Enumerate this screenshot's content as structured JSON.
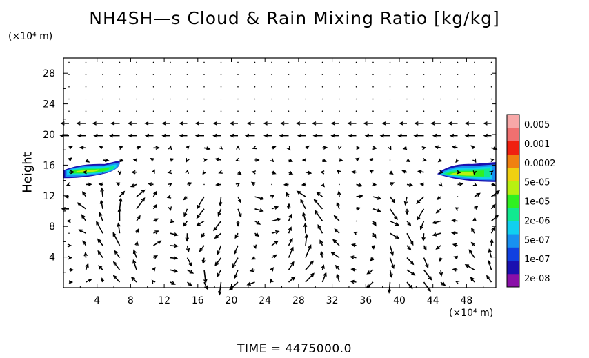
{
  "chart_data": {
    "type": "heatmap",
    "title": "NH4SH—s Cloud & Rain Mixing Ratio [kg/kg]",
    "x_unit": "(×10⁴ m)",
    "y_unit": "(×10⁴ m)",
    "ylabel": "Height",
    "time_label": "TIME  =  4475000.0",
    "xlim": [
      0,
      51.5
    ],
    "ylim": [
      0,
      30
    ],
    "x_ticks": [
      "4",
      "8",
      "12",
      "16",
      "20",
      "24",
      "28",
      "32",
      "36",
      "40",
      "44",
      "48"
    ],
    "y_ticks": [
      "4",
      "8",
      "12",
      "16",
      "20",
      "24",
      "28"
    ],
    "colorbar": {
      "labels": [
        "0.005",
        "0.001",
        "0.0002",
        "5e-05",
        "1e-05",
        "2e-06",
        "5e-07",
        "1e-07",
        "2e-08"
      ],
      "colors": [
        "#8a0fa8",
        "#1a10b0",
        "#1040e0",
        "#1890f0",
        "#10d0f0",
        "#10e890",
        "#30f020",
        "#b8f010",
        "#f0d010",
        "#f08010",
        "#f02010",
        "#f07070",
        "#f8a8a8"
      ]
    },
    "cloud_regions": [
      {
        "x_range": [
          0,
          7.0
        ],
        "y_range": [
          14.3,
          16.6
        ],
        "peak": "5e-05"
      },
      {
        "x_range": [
          44.5,
          51.5
        ],
        "y_range": [
          13.8,
          16.4
        ],
        "peak": "5e-05"
      }
    ],
    "wind_field": "vector arrows"
  }
}
